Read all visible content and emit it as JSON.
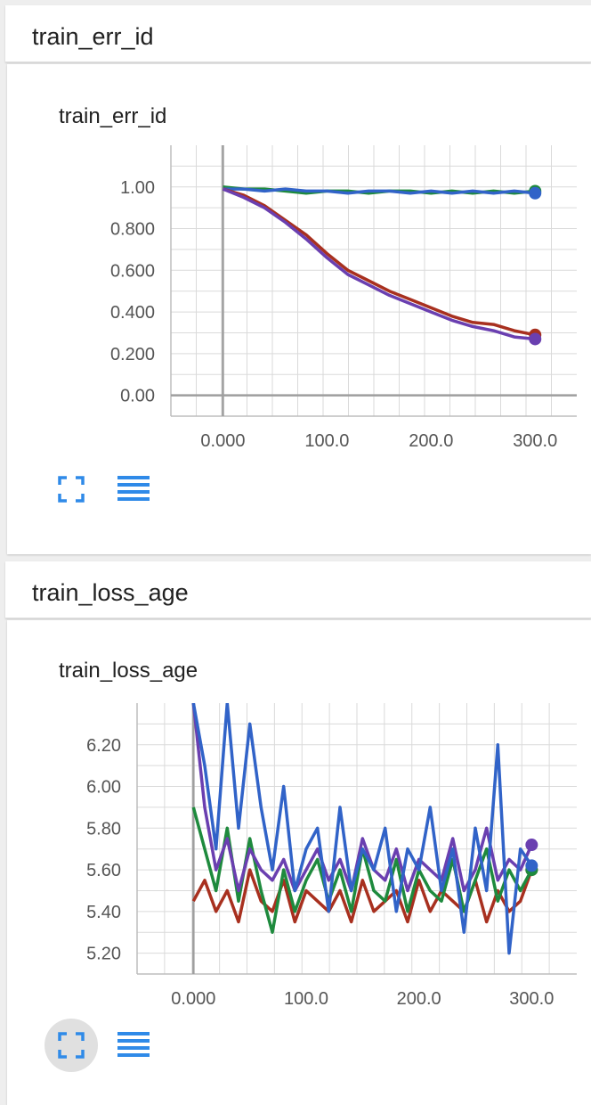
{
  "sections": [
    {
      "header": "train_err_id",
      "card_title": "train_err_id",
      "buttons": {
        "expand_icon": "fullscreen-icon",
        "data_icon": "list-icon"
      }
    },
    {
      "header": "train_loss_age",
      "card_title": "train_loss_age",
      "buttons": {
        "expand_icon": "fullscreen-icon",
        "data_icon": "list-icon"
      }
    }
  ],
  "colors": {
    "accent": "#2f8ae8",
    "grid": "#dadada",
    "axis": "#9e9e9e"
  },
  "chart_data": [
    {
      "type": "line",
      "title": "train_err_id",
      "xlabel": "",
      "ylabel": "",
      "xlim": [
        -50,
        340
      ],
      "ylim": [
        -0.1,
        1.2
      ],
      "x_ticks": [
        0,
        100,
        200,
        300
      ],
      "x_tick_labels": [
        "0.000",
        "100.0",
        "200.0",
        "300.0"
      ],
      "y_ticks": [
        0,
        0.2,
        0.4,
        0.6,
        0.8,
        1.0
      ],
      "y_tick_labels": [
        "0.00",
        "0.200",
        "0.400",
        "0.600",
        "0.800",
        "1.00"
      ],
      "grid": true,
      "series": [
        {
          "color": "#1e8a3d",
          "x": [
            0,
            20,
            40,
            60,
            80,
            100,
            120,
            140,
            160,
            180,
            200,
            220,
            240,
            260,
            280,
            300
          ],
          "y": [
            1.0,
            0.99,
            0.99,
            0.98,
            0.97,
            0.98,
            0.98,
            0.97,
            0.98,
            0.98,
            0.97,
            0.98,
            0.97,
            0.98,
            0.97,
            0.98
          ]
        },
        {
          "color": "#3163c8",
          "x": [
            0,
            20,
            40,
            60,
            80,
            100,
            120,
            140,
            160,
            180,
            200,
            220,
            240,
            260,
            280,
            300
          ],
          "y": [
            0.99,
            0.99,
            0.98,
            0.99,
            0.98,
            0.98,
            0.97,
            0.98,
            0.98,
            0.97,
            0.98,
            0.97,
            0.98,
            0.97,
            0.98,
            0.97
          ]
        },
        {
          "color": "#a8301f",
          "x": [
            0,
            20,
            40,
            60,
            80,
            100,
            120,
            140,
            160,
            180,
            200,
            220,
            240,
            260,
            280,
            300
          ],
          "y": [
            0.99,
            0.96,
            0.91,
            0.84,
            0.77,
            0.68,
            0.6,
            0.55,
            0.5,
            0.46,
            0.42,
            0.38,
            0.35,
            0.34,
            0.31,
            0.29
          ]
        },
        {
          "color": "#6a3fb0",
          "x": [
            0,
            20,
            40,
            60,
            80,
            100,
            120,
            140,
            160,
            180,
            200,
            220,
            240,
            260,
            280,
            300
          ],
          "y": [
            0.99,
            0.95,
            0.9,
            0.83,
            0.75,
            0.66,
            0.58,
            0.53,
            0.48,
            0.44,
            0.4,
            0.36,
            0.33,
            0.31,
            0.28,
            0.27
          ]
        }
      ]
    },
    {
      "type": "line",
      "title": "train_loss_age",
      "xlabel": "",
      "ylabel": "",
      "xlim": [
        -50,
        340
      ],
      "ylim": [
        5.1,
        6.4
      ],
      "x_ticks": [
        0,
        100,
        200,
        300
      ],
      "x_tick_labels": [
        "0.000",
        "100.0",
        "200.0",
        "300.0"
      ],
      "y_ticks": [
        5.2,
        5.4,
        5.6,
        5.8,
        6.0,
        6.2
      ],
      "y_tick_labels": [
        "5.20",
        "5.40",
        "5.60",
        "5.80",
        "6.00",
        "6.20"
      ],
      "grid": true,
      "series": [
        {
          "color": "#a8301f",
          "x": [
            0,
            10,
            20,
            30,
            40,
            50,
            60,
            70,
            80,
            90,
            100,
            110,
            120,
            130,
            140,
            150,
            160,
            170,
            180,
            190,
            200,
            210,
            220,
            230,
            240,
            250,
            260,
            270,
            280,
            290,
            300
          ],
          "y": [
            5.45,
            5.55,
            5.4,
            5.5,
            5.35,
            5.6,
            5.45,
            5.4,
            5.55,
            5.35,
            5.5,
            5.45,
            5.4,
            5.5,
            5.35,
            5.55,
            5.4,
            5.45,
            5.5,
            5.35,
            5.55,
            5.4,
            5.5,
            5.45,
            5.4,
            5.55,
            5.35,
            5.5,
            5.4,
            5.45,
            5.6
          ]
        },
        {
          "color": "#1e8a3d",
          "x": [
            0,
            10,
            20,
            30,
            40,
            50,
            60,
            70,
            80,
            90,
            100,
            110,
            120,
            130,
            140,
            150,
            160,
            170,
            180,
            190,
            200,
            210,
            220,
            230,
            240,
            250,
            260,
            270,
            280,
            290,
            300
          ],
          "y": [
            5.9,
            5.7,
            5.5,
            5.8,
            5.45,
            5.75,
            5.5,
            5.3,
            5.6,
            5.4,
            5.55,
            5.65,
            5.45,
            5.6,
            5.4,
            5.7,
            5.5,
            5.45,
            5.65,
            5.4,
            5.6,
            5.5,
            5.45,
            5.65,
            5.4,
            5.55,
            5.7,
            5.45,
            5.6,
            5.5,
            5.6
          ]
        },
        {
          "color": "#6a3fb0",
          "x": [
            0,
            10,
            20,
            30,
            40,
            50,
            60,
            70,
            80,
            90,
            100,
            110,
            120,
            130,
            140,
            150,
            160,
            170,
            180,
            190,
            200,
            210,
            220,
            230,
            240,
            250,
            260,
            270,
            280,
            290,
            300
          ],
          "y": [
            6.4,
            5.9,
            5.6,
            5.75,
            5.5,
            5.7,
            5.6,
            5.55,
            5.65,
            5.5,
            5.6,
            5.7,
            5.55,
            5.65,
            5.5,
            5.75,
            5.6,
            5.55,
            5.7,
            5.5,
            5.65,
            5.6,
            5.55,
            5.75,
            5.5,
            5.6,
            5.8,
            5.55,
            5.65,
            5.6,
            5.72
          ]
        },
        {
          "color": "#3163c8",
          "x": [
            0,
            10,
            20,
            30,
            40,
            50,
            60,
            70,
            80,
            90,
            100,
            110,
            120,
            130,
            140,
            150,
            160,
            170,
            180,
            190,
            200,
            210,
            220,
            230,
            240,
            250,
            260,
            270,
            280,
            290,
            300
          ],
          "y": [
            6.4,
            6.1,
            5.7,
            6.4,
            5.8,
            6.3,
            5.9,
            5.6,
            6.0,
            5.5,
            5.7,
            5.8,
            5.4,
            5.9,
            5.5,
            5.7,
            5.6,
            5.8,
            5.4,
            5.7,
            5.6,
            5.9,
            5.5,
            5.7,
            5.3,
            5.8,
            5.5,
            6.2,
            5.2,
            5.7,
            5.62
          ]
        }
      ]
    }
  ]
}
